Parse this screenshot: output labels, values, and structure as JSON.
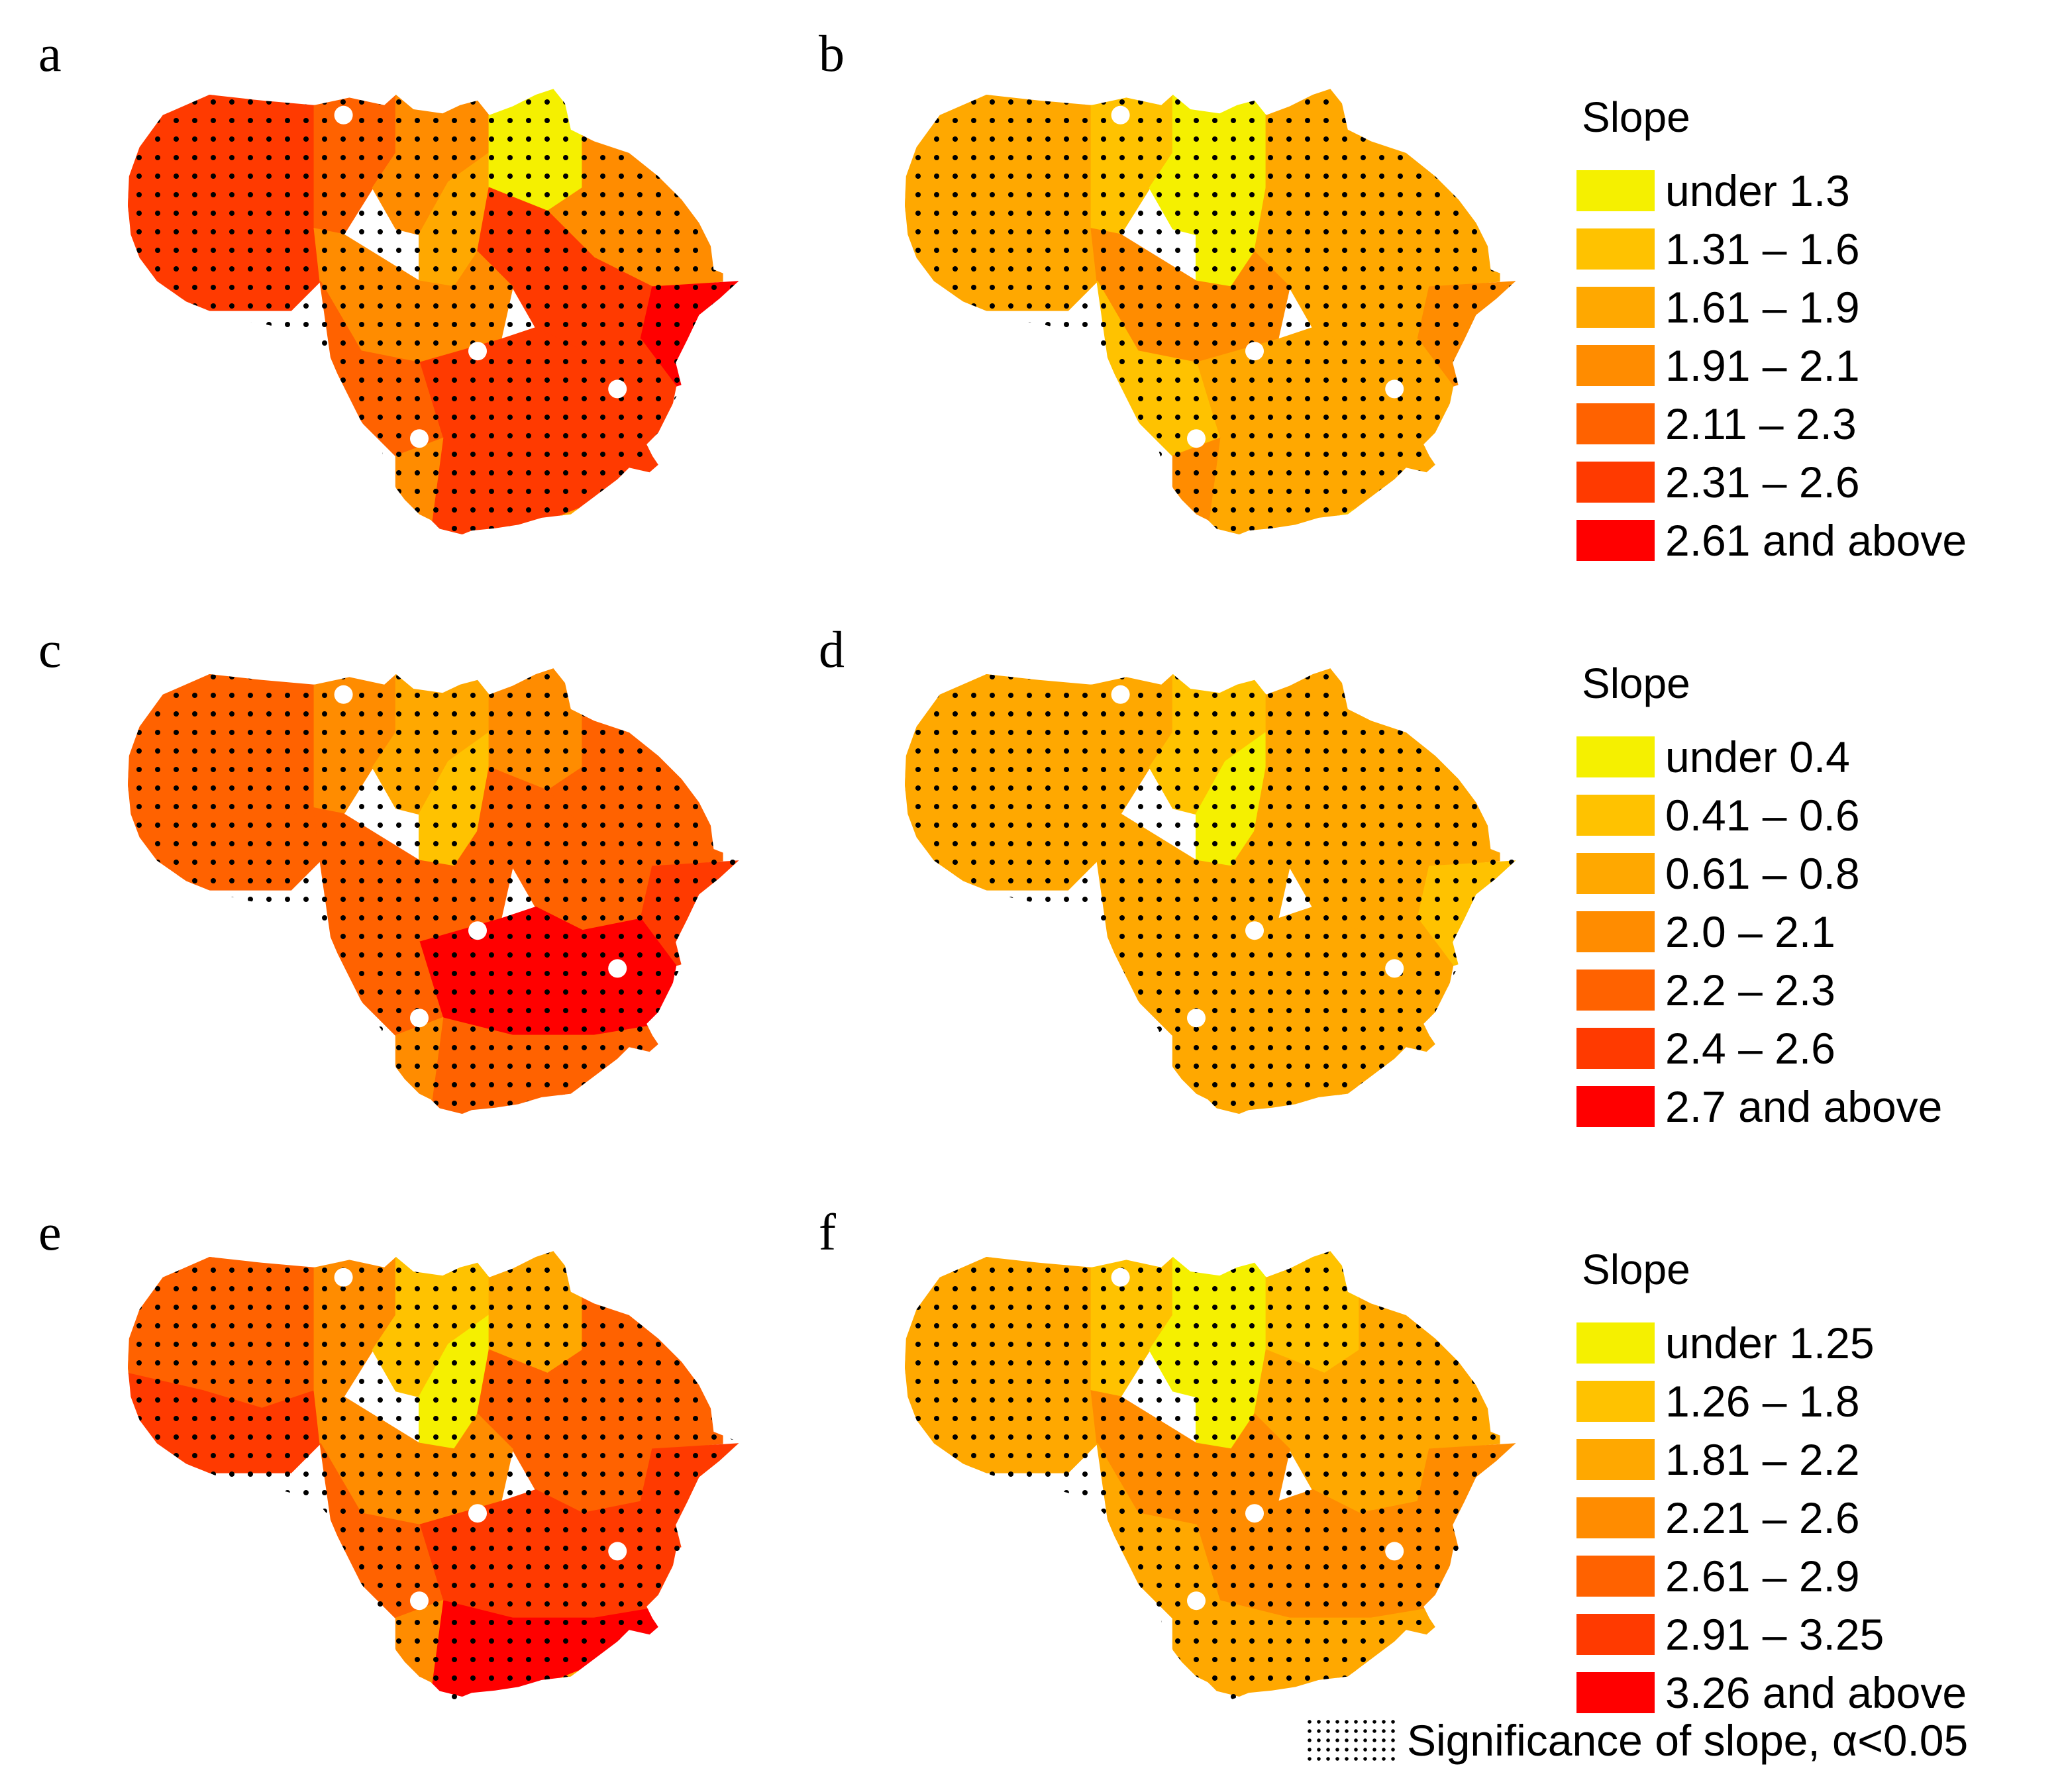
{
  "panels": [
    {
      "id": "a",
      "label": "a",
      "classes": [
        5,
        5,
        4,
        3,
        2,
        0,
        3,
        5,
        6,
        3,
        5,
        4,
        5,
        3,
        2
      ]
    },
    {
      "id": "b",
      "label": "b",
      "classes": [
        2,
        2,
        1,
        0,
        0,
        2,
        2,
        2,
        3,
        3,
        2,
        1,
        2,
        3,
        1
      ]
    },
    {
      "id": "c",
      "label": "c",
      "classes": [
        4,
        4,
        3,
        2,
        1,
        3,
        4,
        4,
        5,
        4,
        6,
        4,
        4,
        3,
        4
      ]
    },
    {
      "id": "d",
      "label": "d",
      "classes": [
        2,
        2,
        2,
        1,
        0,
        2,
        2,
        2,
        1,
        2,
        2,
        2,
        2,
        2,
        2
      ]
    },
    {
      "id": "e",
      "label": "e",
      "classes": [
        4,
        5,
        3,
        1,
        0,
        2,
        4,
        4,
        5,
        3,
        5,
        4,
        6,
        3,
        2
      ]
    },
    {
      "id": "f",
      "label": "f",
      "classes": [
        2,
        2,
        1,
        0,
        0,
        1,
        2,
        2,
        3,
        3,
        3,
        2,
        2,
        2,
        2
      ]
    }
  ],
  "colors": [
    "#F5F000",
    "#FFC200",
    "#FFA800",
    "#FF8C00",
    "#FF6200",
    "#FF3A00",
    "#FF0000"
  ],
  "dot_color": "#000000",
  "legends": [
    {
      "title": "Slope",
      "items": [
        "under 1.3",
        "1.31 – 1.6",
        "1.61 – 1.9",
        "1.91 – 2.1",
        "2.11 – 2.3",
        "2.31 – 2.6",
        "2.61 and above"
      ]
    },
    {
      "title": "Slope",
      "items": [
        "under 0.4",
        "0.41 – 0.6",
        "0.61 – 0.8",
        "2.0 – 2.1",
        "2.2 – 2.3",
        "2.4 – 2.6",
        "2.7 and above"
      ]
    },
    {
      "title": "Slope",
      "items": [
        "under 1.25",
        "1.26 – 1.8",
        "1.81 – 2.2",
        "2.21 – 2.6",
        "2.61 – 2.9",
        "2.91 – 3.25",
        "3.26 and above"
      ]
    }
  ],
  "significance_label": "Significance of slope, α<0.05"
}
